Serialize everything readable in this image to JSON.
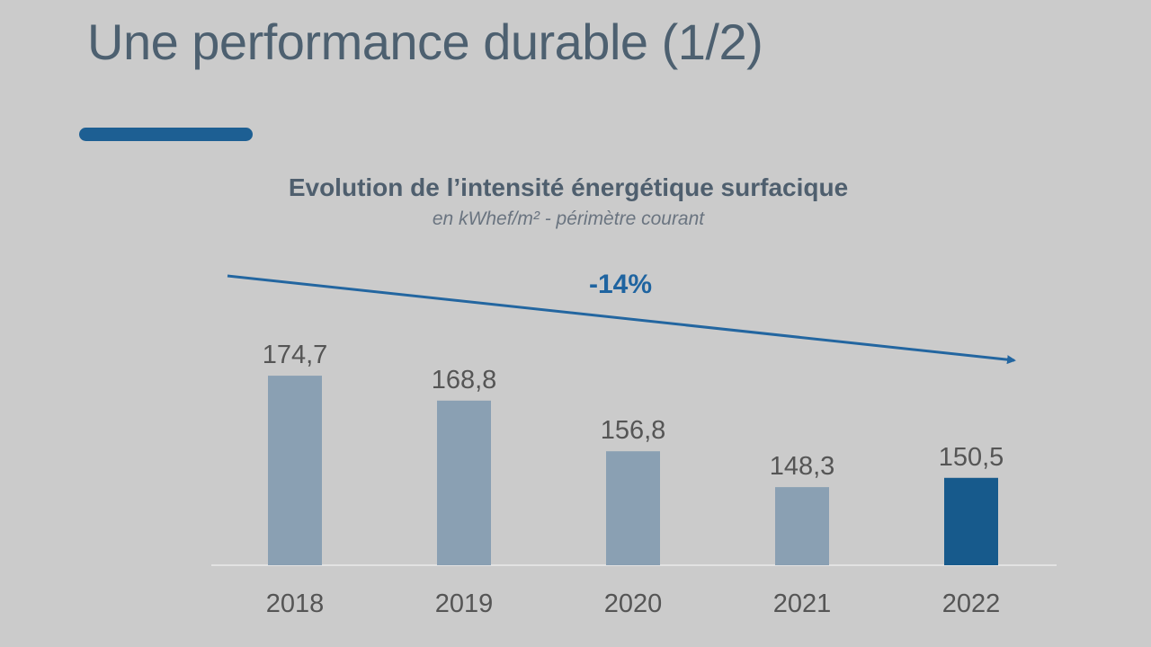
{
  "slide": {
    "title": "Une performance durable (1/2)"
  },
  "colors": {
    "background": "#cbcbcb",
    "bar": "#8aa0b3",
    "highlight_bar": "#175a8c",
    "arrow": "#2366a0"
  },
  "chart_data": {
    "type": "bar",
    "title": "Evolution de l’intensité énergétique surfacique",
    "subtitle": "en kWhef/m² - périmètre courant",
    "categories": [
      "2018",
      "2019",
      "2020",
      "2021",
      "2022"
    ],
    "values": [
      174.7,
      168.8,
      156.8,
      148.3,
      150.5
    ],
    "value_labels": [
      "174,7",
      "168,8",
      "156,8",
      "148,3",
      "150,5"
    ],
    "highlight_index": 4,
    "trend_annotation": "-14%",
    "xlabel": "",
    "ylabel": "",
    "ylim": [
      129.8,
      180
    ],
    "grid": false
  }
}
